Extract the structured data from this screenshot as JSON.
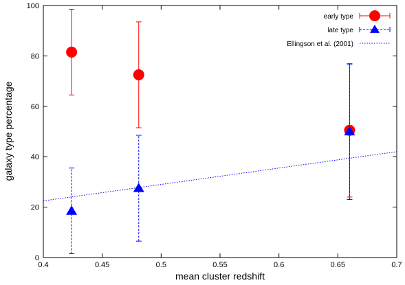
{
  "chart_data": {
    "type": "scatter",
    "xlabel": "mean cluster redshift",
    "ylabel": "galaxy type percentage",
    "xlim": [
      0.4,
      0.7
    ],
    "ylim": [
      0,
      100
    ],
    "xticks": [
      "0.4",
      "0.45",
      "0.5",
      "0.55",
      "0.6",
      "0.65",
      "0.7"
    ],
    "yticks": [
      "0",
      "20",
      "40",
      "60",
      "80",
      "100"
    ],
    "grid": false,
    "legend_position": "top-right",
    "series": [
      {
        "name": "early type",
        "color": "#ff0000",
        "marker": "circle",
        "points": [
          {
            "x": 0.424,
            "y": 81.5,
            "ylow": 64.5,
            "yhigh": 98.5
          },
          {
            "x": 0.481,
            "y": 72.5,
            "ylow": 51.5,
            "yhigh": 93.5
          },
          {
            "x": 0.66,
            "y": 50.5,
            "ylow": 24.0,
            "yhigh": 77.0
          }
        ]
      },
      {
        "name": "late type",
        "color": "#0000ff",
        "marker": "triangle",
        "points": [
          {
            "x": 0.424,
            "y": 18.5,
            "ylow": 1.5,
            "yhigh": 35.5
          },
          {
            "x": 0.481,
            "y": 27.5,
            "ylow": 6.5,
            "yhigh": 48.5
          },
          {
            "x": 0.66,
            "y": 50.0,
            "ylow": 23.0,
            "yhigh": 76.5
          }
        ]
      },
      {
        "name": "Ellingson et al. (2001)",
        "color": "#0000ff",
        "style": "dotted-line",
        "line": {
          "x": [
            0.4,
            0.7
          ],
          "y": [
            22.5,
            42.0
          ]
        }
      }
    ]
  }
}
